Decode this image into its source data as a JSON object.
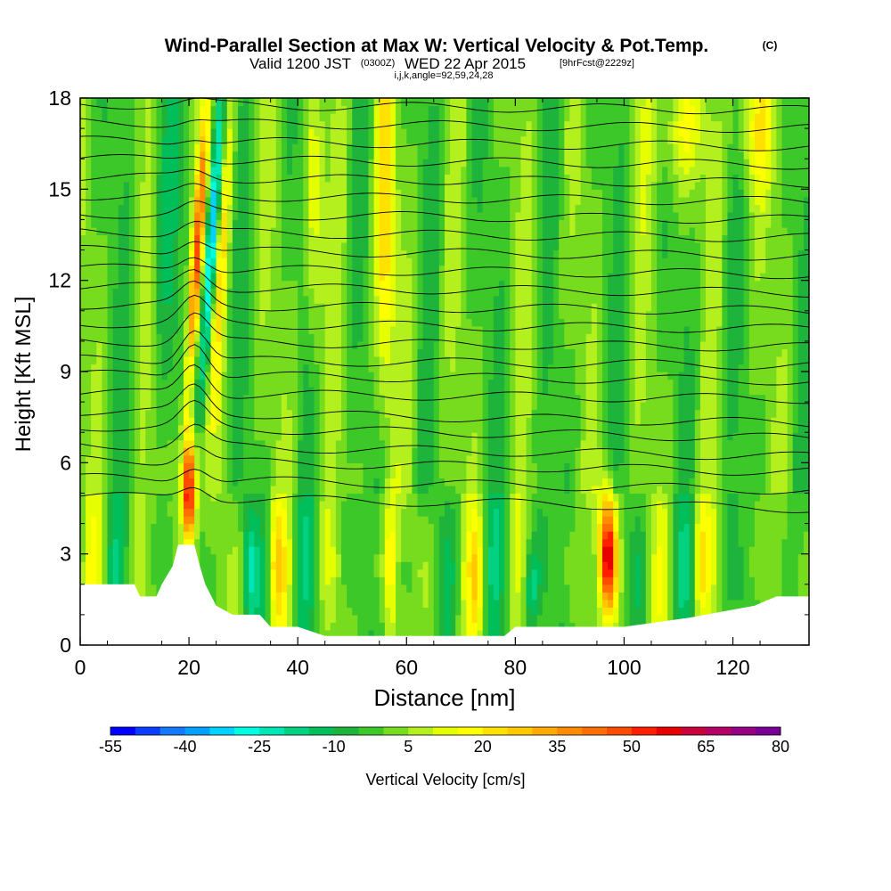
{
  "chart_data": {
    "type": "heatmap",
    "title": "Wind-Parallel Section at Max W: Vertical Velocity & Pot.Temp.",
    "title_copyright": "(C)",
    "subtitle_valid": "Valid 1200 JST",
    "subtitle_utc": "(0300Z)",
    "subtitle_date": "WED 22 Apr 2015",
    "subtitle_fcst": "[9hrFcst@2229z]",
    "subtitle_indices": "i,j,k,angle=92,59,24,28",
    "xlabel": "Distance [nm]",
    "ylabel": "Height [Kft MSL]",
    "xlim": [
      0,
      134
    ],
    "ylim": [
      0,
      18
    ],
    "x_ticks": [
      0,
      20,
      40,
      60,
      80,
      100,
      120
    ],
    "y_ticks": [
      0,
      3,
      6,
      9,
      12,
      15,
      18
    ],
    "grid": false,
    "colorbar": {
      "label": "Vertical Velocity [cm/s]",
      "min": -55,
      "max": 80,
      "step": 5,
      "tick_values": [
        -55,
        -40,
        -25,
        -10,
        5,
        20,
        35,
        50,
        65,
        80
      ],
      "colors": [
        "#0000ff",
        "#0a3cff",
        "#1478ff",
        "#00a0ff",
        "#00d2ff",
        "#00ffe1",
        "#00e6b4",
        "#00d282",
        "#00be5a",
        "#1eb43c",
        "#3cc828",
        "#78dc1e",
        "#b4f01e",
        "#e6ff00",
        "#ffff00",
        "#ffe100",
        "#ffc800",
        "#ffaa00",
        "#ff8c00",
        "#ff6e00",
        "#ff4b00",
        "#ff1e00",
        "#e60000",
        "#c8003c",
        "#b40064",
        "#960082",
        "#780096"
      ]
    },
    "features": [
      {
        "name": "updraft",
        "x": 20,
        "y": 5.2,
        "w_cm_s": 60
      },
      {
        "name": "updraft",
        "x": 97,
        "y": 3.0,
        "w_cm_s": 60
      },
      {
        "name": "updraft",
        "x": 22,
        "y": 13,
        "w_cm_s": 45
      },
      {
        "name": "downdraft",
        "x": 25,
        "y": 13.5,
        "w_cm_s": -35
      }
    ],
    "isentropes": {
      "description": "potential temperature contours (°C)",
      "heights_at_x0": [
        4.9,
        5.5,
        6.1,
        6.6,
        7.2,
        7.7,
        8.3,
        8.9,
        9.4,
        10.0,
        10.6,
        11.2,
        11.8,
        12.4,
        13.0,
        13.6,
        14.2,
        14.8,
        15.4,
        16.0,
        16.6,
        17.2,
        17.8
      ]
    },
    "terrain_height_kft": [
      {
        "x": 0,
        "h": 2.0
      },
      {
        "x": 10,
        "h": 2.0
      },
      {
        "x": 11,
        "h": 1.6
      },
      {
        "x": 14,
        "h": 1.6
      },
      {
        "x": 15,
        "h": 2.0
      },
      {
        "x": 17,
        "h": 2.6
      },
      {
        "x": 18,
        "h": 3.3
      },
      {
        "x": 21,
        "h": 3.3
      },
      {
        "x": 22,
        "h": 2.6
      },
      {
        "x": 23,
        "h": 2.0
      },
      {
        "x": 25,
        "h": 1.3
      },
      {
        "x": 28,
        "h": 1.0
      },
      {
        "x": 33,
        "h": 1.0
      },
      {
        "x": 35,
        "h": 0.6
      },
      {
        "x": 40,
        "h": 0.6
      },
      {
        "x": 45,
        "h": 0.3
      },
      {
        "x": 78,
        "h": 0.3
      },
      {
        "x": 80,
        "h": 0.6
      },
      {
        "x": 90,
        "h": 0.6
      },
      {
        "x": 100,
        "h": 0.6
      },
      {
        "x": 112,
        "h": 0.9
      },
      {
        "x": 124,
        "h": 1.3
      },
      {
        "x": 128,
        "h": 1.6
      },
      {
        "x": 134,
        "h": 1.6
      }
    ]
  },
  "colors": {
    "frame": "#000000",
    "terrain": "#ffffff",
    "background": "#ffffff"
  }
}
